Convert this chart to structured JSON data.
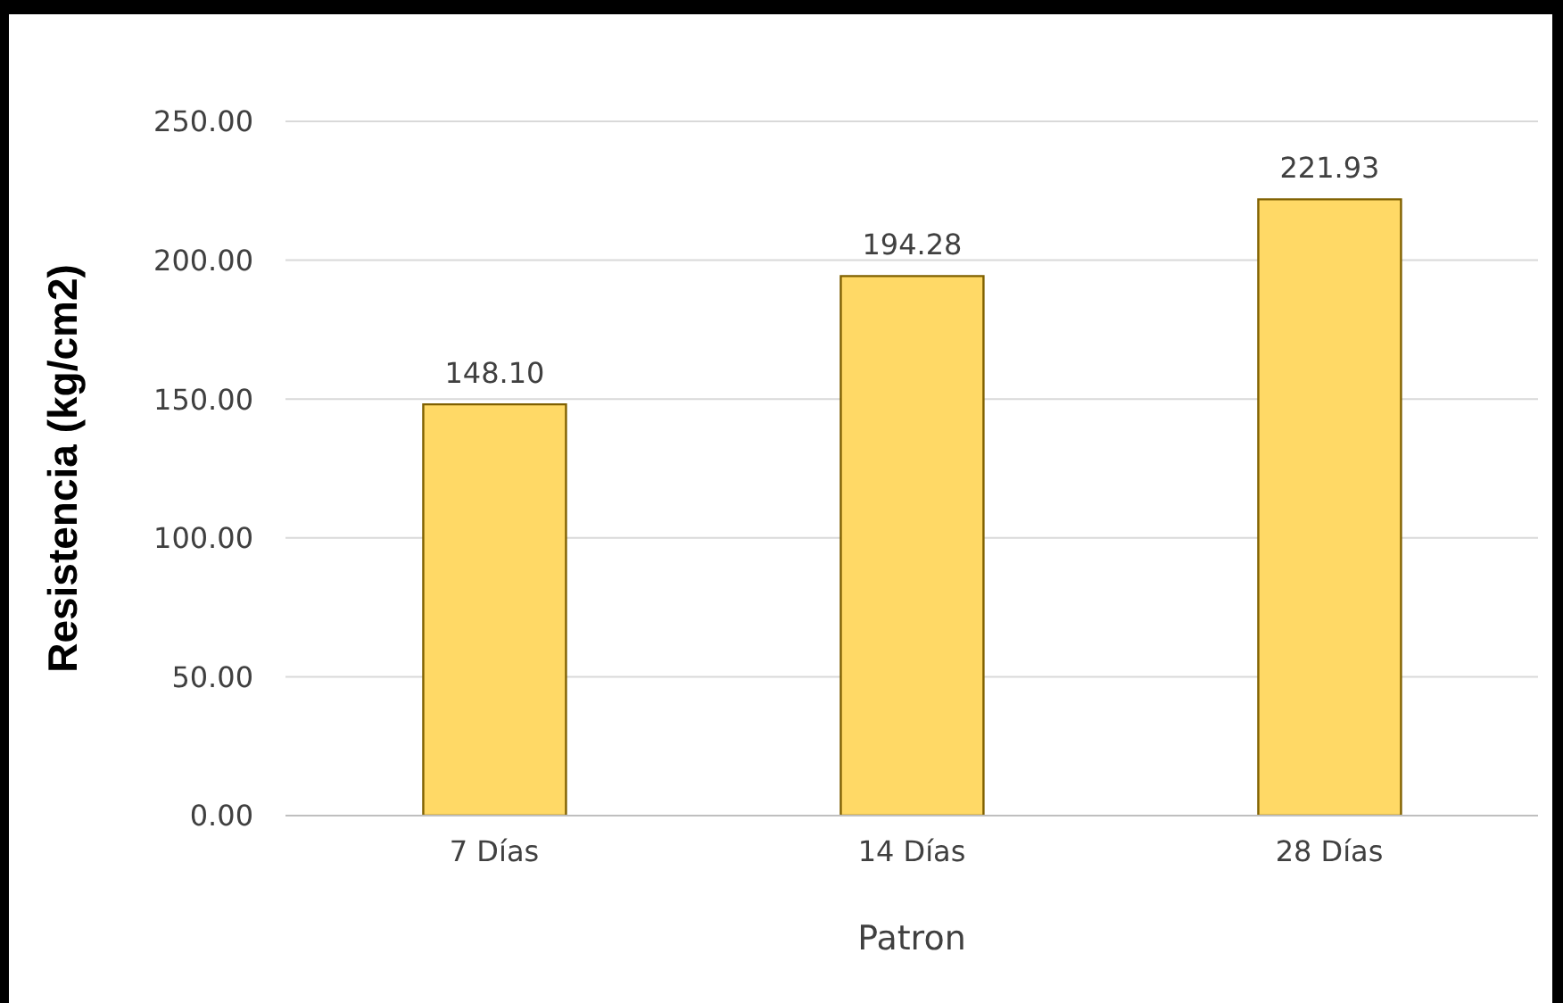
{
  "chart_data": {
    "type": "bar",
    "xlabel": "Patron",
    "ylabel": "Resistencia (kg/cm2)",
    "categories": [
      "7 Días",
      "14 Días",
      "28 Días"
    ],
    "values": [
      148.1,
      194.28,
      221.93
    ],
    "value_labels": [
      "148.10",
      "194.28",
      "221.93"
    ],
    "color": "#ffd966",
    "ylim": [
      0,
      250
    ],
    "yticks": [
      {
        "value": 0,
        "label": "0.00"
      },
      {
        "value": 50,
        "label": "50.00"
      },
      {
        "value": 100,
        "label": "100.00"
      },
      {
        "value": 150,
        "label": "150.00"
      },
      {
        "value": 200,
        "label": "200.00"
      },
      {
        "value": 250,
        "label": "250.00"
      }
    ],
    "grid": "y",
    "legend": false
  }
}
